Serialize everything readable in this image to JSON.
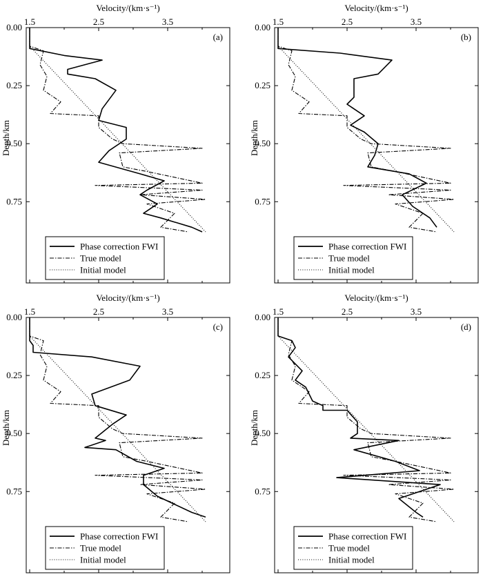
{
  "chart_data": [
    {
      "type": "line",
      "panel_label": "(a)",
      "xlabel": "Velocity/(km·s⁻¹)",
      "ylabel": "Depth/km",
      "xlim": [
        1.45,
        4.4
      ],
      "ylim": [
        0,
        1.1
      ],
      "y_inverted": true,
      "xticks": [
        "1.5",
        "2.5",
        "3.5"
      ],
      "yticks": [
        "0.00",
        "0.25",
        "0.50",
        "0.75"
      ],
      "legend": {
        "position": "bottom-left",
        "entries": [
          "Phase correction FWI",
          "True model",
          "Initial model"
        ]
      },
      "series": [
        {
          "name": "Phase correction FWI",
          "style": "solid",
          "points": [
            [
              1.5,
              0
            ],
            [
              1.5,
              0.09
            ],
            [
              2.0,
              0.12
            ],
            [
              2.55,
              0.14
            ],
            [
              2.05,
              0.18
            ],
            [
              2.05,
              0.2
            ],
            [
              2.45,
              0.22
            ],
            [
              2.75,
              0.27
            ],
            [
              2.55,
              0.35
            ],
            [
              2.5,
              0.4
            ],
            [
              2.9,
              0.43
            ],
            [
              2.9,
              0.48
            ],
            [
              2.65,
              0.53
            ],
            [
              2.5,
              0.58
            ],
            [
              3.1,
              0.63
            ],
            [
              3.45,
              0.66
            ],
            [
              3.2,
              0.7
            ],
            [
              3.1,
              0.72
            ],
            [
              3.35,
              0.76
            ],
            [
              3.15,
              0.8
            ],
            [
              3.4,
              0.82
            ],
            [
              3.85,
              0.86
            ],
            [
              4.0,
              0.88
            ]
          ]
        },
        {
          "name": "True model",
          "style": "dashdot",
          "points": [
            [
              1.5,
              0
            ],
            [
              1.5,
              0.08
            ],
            [
              1.7,
              0.1
            ],
            [
              1.65,
              0.16
            ],
            [
              1.75,
              0.21
            ],
            [
              1.7,
              0.27
            ],
            [
              1.95,
              0.32
            ],
            [
              1.8,
              0.37
            ],
            [
              2.5,
              0.38
            ],
            [
              2.5,
              0.43
            ],
            [
              2.7,
              0.48
            ],
            [
              2.85,
              0.5
            ],
            [
              4.0,
              0.52
            ],
            [
              2.8,
              0.54
            ],
            [
              2.85,
              0.6
            ],
            [
              3.2,
              0.62
            ],
            [
              4.0,
              0.67
            ],
            [
              2.45,
              0.68
            ],
            [
              4.0,
              0.7
            ],
            [
              3.1,
              0.72
            ],
            [
              4.05,
              0.74
            ],
            [
              3.2,
              0.76
            ],
            [
              3.6,
              0.8
            ],
            [
              3.4,
              0.86
            ],
            [
              3.8,
              0.88
            ]
          ]
        },
        {
          "name": "Initial model",
          "style": "dotted",
          "points": [
            [
              1.5,
              0
            ],
            [
              1.5,
              0.08
            ],
            [
              4.05,
              0.88
            ]
          ]
        }
      ]
    },
    {
      "type": "line",
      "panel_label": "(b)",
      "xlabel": "Velocity/(km·s⁻¹)",
      "ylabel": "Depth/km",
      "xlim": [
        1.45,
        4.4
      ],
      "ylim": [
        0,
        1.1
      ],
      "y_inverted": true,
      "xticks": [
        "1.5",
        "2.5",
        "3.5"
      ],
      "yticks": [
        "0.00",
        "0.25",
        "0.50",
        "0.75"
      ],
      "legend": {
        "position": "bottom-left",
        "entries": [
          "Phase correction FWI",
          "True model",
          "Initial model"
        ]
      },
      "series": [
        {
          "name": "Phase correction FWI",
          "style": "solid",
          "points": [
            [
              1.5,
              0
            ],
            [
              1.5,
              0.09
            ],
            [
              2.4,
              0.11
            ],
            [
              3.15,
              0.14
            ],
            [
              2.95,
              0.2
            ],
            [
              2.6,
              0.22
            ],
            [
              2.6,
              0.3
            ],
            [
              2.5,
              0.33
            ],
            [
              2.75,
              0.38
            ],
            [
              2.55,
              0.42
            ],
            [
              2.75,
              0.45
            ],
            [
              2.95,
              0.5
            ],
            [
              2.9,
              0.55
            ],
            [
              2.8,
              0.6
            ],
            [
              3.0,
              0.61
            ],
            [
              3.4,
              0.63
            ],
            [
              3.65,
              0.67
            ],
            [
              3.3,
              0.72
            ],
            [
              3.45,
              0.77
            ],
            [
              3.7,
              0.82
            ],
            [
              3.8,
              0.86
            ]
          ]
        },
        {
          "name": "True model",
          "style": "dashdot",
          "points": [
            [
              1.5,
              0
            ],
            [
              1.5,
              0.08
            ],
            [
              1.7,
              0.1
            ],
            [
              1.65,
              0.16
            ],
            [
              1.75,
              0.21
            ],
            [
              1.7,
              0.27
            ],
            [
              1.95,
              0.32
            ],
            [
              1.8,
              0.37
            ],
            [
              2.5,
              0.38
            ],
            [
              2.5,
              0.43
            ],
            [
              2.7,
              0.48
            ],
            [
              2.85,
              0.5
            ],
            [
              4.0,
              0.52
            ],
            [
              2.8,
              0.54
            ],
            [
              2.85,
              0.6
            ],
            [
              3.2,
              0.62
            ],
            [
              4.0,
              0.67
            ],
            [
              2.45,
              0.68
            ],
            [
              4.0,
              0.7
            ],
            [
              3.1,
              0.72
            ],
            [
              4.05,
              0.74
            ],
            [
              3.2,
              0.76
            ],
            [
              3.6,
              0.8
            ],
            [
              3.4,
              0.86
            ],
            [
              3.8,
              0.88
            ]
          ]
        },
        {
          "name": "Initial model",
          "style": "dotted",
          "points": [
            [
              1.5,
              0
            ],
            [
              1.5,
              0.08
            ],
            [
              4.05,
              0.88
            ]
          ]
        }
      ]
    },
    {
      "type": "line",
      "panel_label": "(c)",
      "xlabel": "Velocity/(km·s⁻¹)",
      "ylabel": "Depth/km",
      "xlim": [
        1.45,
        4.4
      ],
      "ylim": [
        0,
        1.1
      ],
      "y_inverted": true,
      "xticks": [
        "1.5",
        "2.5",
        "3.5"
      ],
      "yticks": [
        "0.00",
        "0.25",
        "0.50",
        "0.75"
      ],
      "legend": {
        "position": "bottom-left",
        "entries": [
          "Phase correction FWI",
          "True model",
          "Initial model"
        ]
      },
      "series": [
        {
          "name": "Phase correction FWI",
          "style": "solid",
          "points": [
            [
              1.5,
              0
            ],
            [
              1.5,
              0.1
            ],
            [
              1.55,
              0.12
            ],
            [
              1.55,
              0.15
            ],
            [
              2.4,
              0.17
            ],
            [
              3.1,
              0.21
            ],
            [
              2.95,
              0.27
            ],
            [
              2.4,
              0.33
            ],
            [
              2.45,
              0.38
            ],
            [
              2.9,
              0.42
            ],
            [
              2.7,
              0.46
            ],
            [
              2.45,
              0.52
            ],
            [
              2.6,
              0.53
            ],
            [
              2.3,
              0.56
            ],
            [
              2.75,
              0.57
            ],
            [
              3.05,
              0.62
            ],
            [
              3.45,
              0.65
            ],
            [
              3.15,
              0.68
            ],
            [
              3.15,
              0.72
            ],
            [
              3.35,
              0.77
            ],
            [
              3.85,
              0.84
            ],
            [
              4.05,
              0.86
            ]
          ]
        },
        {
          "name": "True model",
          "style": "dashdot",
          "points": [
            [
              1.5,
              0
            ],
            [
              1.5,
              0.08
            ],
            [
              1.7,
              0.1
            ],
            [
              1.65,
              0.16
            ],
            [
              1.75,
              0.21
            ],
            [
              1.7,
              0.27
            ],
            [
              1.95,
              0.32
            ],
            [
              1.8,
              0.37
            ],
            [
              2.5,
              0.38
            ],
            [
              2.5,
              0.43
            ],
            [
              2.7,
              0.48
            ],
            [
              2.85,
              0.5
            ],
            [
              4.0,
              0.52
            ],
            [
              2.8,
              0.54
            ],
            [
              2.85,
              0.6
            ],
            [
              3.2,
              0.62
            ],
            [
              4.0,
              0.67
            ],
            [
              2.45,
              0.68
            ],
            [
              4.0,
              0.7
            ],
            [
              3.1,
              0.72
            ],
            [
              4.05,
              0.74
            ],
            [
              3.2,
              0.76
            ],
            [
              3.6,
              0.8
            ],
            [
              3.4,
              0.86
            ],
            [
              3.8,
              0.88
            ]
          ]
        },
        {
          "name": "Initial model",
          "style": "dotted",
          "points": [
            [
              1.5,
              0
            ],
            [
              1.5,
              0.08
            ],
            [
              4.05,
              0.88
            ]
          ]
        }
      ]
    },
    {
      "type": "line",
      "panel_label": "(d)",
      "xlabel": "Velocity/(km·s⁻¹)",
      "ylabel": "Depth/km",
      "xlim": [
        1.45,
        4.4
      ],
      "ylim": [
        0,
        1.1
      ],
      "y_inverted": true,
      "xticks": [
        "1.5",
        "2.5",
        "3.5"
      ],
      "yticks": [
        "0.00",
        "0.25",
        "0.50",
        "0.75"
      ],
      "legend": {
        "position": "bottom-left",
        "entries": [
          "Phase correction FWI",
          "True model",
          "Initial model"
        ]
      },
      "series": [
        {
          "name": "Phase correction FWI",
          "style": "solid",
          "points": [
            [
              1.5,
              0
            ],
            [
              1.5,
              0.08
            ],
            [
              1.7,
              0.1
            ],
            [
              1.75,
              0.13
            ],
            [
              1.65,
              0.17
            ],
            [
              1.75,
              0.2
            ],
            [
              1.85,
              0.23
            ],
            [
              1.75,
              0.27
            ],
            [
              1.9,
              0.3
            ],
            [
              2.0,
              0.36
            ],
            [
              2.15,
              0.38
            ],
            [
              2.15,
              0.4
            ],
            [
              2.5,
              0.4
            ],
            [
              2.65,
              0.45
            ],
            [
              2.65,
              0.5
            ],
            [
              2.55,
              0.52
            ],
            [
              3.25,
              0.53
            ],
            [
              2.6,
              0.57
            ],
            [
              3.2,
              0.62
            ],
            [
              3.55,
              0.66
            ],
            [
              2.35,
              0.69
            ],
            [
              3.85,
              0.72
            ],
            [
              3.25,
              0.78
            ],
            [
              3.5,
              0.84
            ],
            [
              3.6,
              0.86
            ]
          ]
        },
        {
          "name": "True model",
          "style": "dashdot",
          "points": [
            [
              1.5,
              0
            ],
            [
              1.5,
              0.08
            ],
            [
              1.7,
              0.1
            ],
            [
              1.65,
              0.16
            ],
            [
              1.75,
              0.21
            ],
            [
              1.7,
              0.27
            ],
            [
              1.95,
              0.32
            ],
            [
              1.8,
              0.37
            ],
            [
              2.5,
              0.38
            ],
            [
              2.5,
              0.43
            ],
            [
              2.7,
              0.48
            ],
            [
              2.85,
              0.5
            ],
            [
              4.0,
              0.52
            ],
            [
              2.8,
              0.54
            ],
            [
              2.85,
              0.6
            ],
            [
              3.2,
              0.62
            ],
            [
              4.0,
              0.67
            ],
            [
              2.45,
              0.68
            ],
            [
              4.0,
              0.7
            ],
            [
              3.1,
              0.72
            ],
            [
              4.05,
              0.74
            ],
            [
              3.2,
              0.76
            ],
            [
              3.6,
              0.8
            ],
            [
              3.4,
              0.86
            ],
            [
              3.8,
              0.88
            ]
          ]
        },
        {
          "name": "Initial model",
          "style": "dotted",
          "points": [
            [
              1.5,
              0
            ],
            [
              1.5,
              0.08
            ],
            [
              4.05,
              0.88
            ]
          ]
        }
      ]
    }
  ]
}
